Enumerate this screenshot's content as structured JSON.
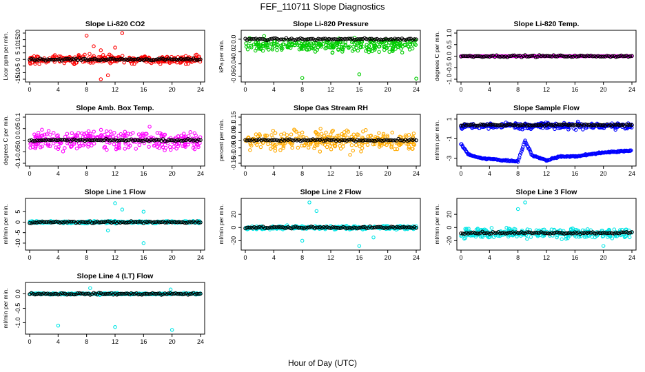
{
  "figure": {
    "title": "FEF_110711  Slope Diagnostics",
    "xlabel": "Hour of Day (UTC)"
  },
  "chart_data": [
    {
      "type": "scatter",
      "title": "Slope Li-820 CO2",
      "ylabel": "Licor ppm per min.",
      "xlim": [
        0,
        24
      ],
      "ylim": [
        -15,
        20
      ],
      "xticks": [
        0,
        4,
        8,
        12,
        16,
        20,
        24
      ],
      "yticks": [
        -15,
        -10,
        -5,
        0,
        5,
        10,
        15,
        20
      ],
      "series": [
        {
          "color": "#ff0000",
          "band": [
            -6,
            6
          ],
          "y_center": 0,
          "outliers": [
            [
              8,
              18
            ],
            [
              10,
              7
            ],
            [
              11,
              -12
            ],
            [
              12,
              9
            ],
            [
              13,
              20
            ],
            [
              10,
              -15
            ],
            [
              9,
              10
            ]
          ]
        },
        {
          "color": "#000000",
          "y_center": 0
        }
      ]
    },
    {
      "type": "scatter",
      "title": "Slope Li-820 Pressure",
      "ylabel": "kPa per min.",
      "xlim": [
        0,
        24
      ],
      "ylim": [
        -0.065,
        0.01
      ],
      "xticks": [
        0,
        4,
        8,
        12,
        16,
        20,
        24
      ],
      "yticks": [
        -0.06,
        -0.04,
        -0.02,
        0.0
      ],
      "series": [
        {
          "color": "#00cc00",
          "band": [
            -0.03,
            0.01
          ],
          "y_center": -0.005,
          "outliers": [
            [
              8,
              -0.063
            ],
            [
              16,
              -0.057
            ],
            [
              24,
              -0.064
            ]
          ]
        },
        {
          "color": "#000000",
          "y_center": 0.0
        }
      ]
    },
    {
      "type": "scatter",
      "title": "Slope Li-820 Temp.",
      "ylabel": "degrees C per min.",
      "xlim": [
        0,
        24
      ],
      "ylim": [
        -1,
        1
      ],
      "xticks": [
        0,
        4,
        8,
        12,
        16,
        20,
        24
      ],
      "yticks": [
        -1.0,
        -0.5,
        0.0,
        0.5,
        1.0
      ],
      "series": [
        {
          "color": "#ff00ff",
          "y_center": 0.0
        },
        {
          "color": "#000000",
          "y_center": 0.0
        }
      ]
    },
    {
      "type": "scatter",
      "title": "Slope Amb. Box Temp.",
      "ylabel": "degrees C per min.",
      "xlim": [
        0,
        24
      ],
      "ylim": [
        -0.1,
        0.1
      ],
      "xticks": [
        0,
        4,
        8,
        12,
        16,
        20,
        24
      ],
      "yticks": [
        -0.1,
        -0.05,
        0.0,
        0.05,
        0.1
      ],
      "series": [
        {
          "color": "#ff00ff",
          "band": [
            -0.08,
            0.08
          ],
          "y_center": 0.0
        },
        {
          "color": "#000000",
          "y_center": 0.0
        }
      ]
    },
    {
      "type": "scatter",
      "title": "Slope Gas Stream RH",
      "ylabel": "percent per min.",
      "xlim": [
        0,
        24
      ],
      "ylim": [
        -0.15,
        0.15
      ],
      "xticks": [
        0,
        4,
        8,
        12,
        16,
        20,
        24
      ],
      "yticks": [
        -0.15,
        -0.1,
        -0.05,
        0.0,
        0.05,
        0.1,
        0.15
      ],
      "series": [
        {
          "color": "#ffaa00",
          "band": [
            -0.12,
            0.12
          ],
          "y_center": 0.0
        },
        {
          "color": "#000000",
          "y_center": 0.0
        }
      ]
    },
    {
      "type": "scatter",
      "title": "Slope Sample Flow",
      "ylabel": "ml/min per min.",
      "xlim": [
        0,
        24
      ],
      "ylim": [
        -3.5,
        1.2
      ],
      "xticks": [
        0,
        4,
        8,
        12,
        16,
        20,
        24
      ],
      "yticks": [
        -3,
        -1,
        1
      ],
      "series": [
        {
          "color": "#0000ff",
          "band": [
            -0.3,
            0.9
          ],
          "y_center": 0.3
        },
        {
          "color": "#0000ff",
          "lower_track": [
            [
              0,
              -1.5
            ],
            [
              1,
              -2.6
            ],
            [
              3,
              -3.0
            ],
            [
              6,
              -3.2
            ],
            [
              8,
              -3.3
            ],
            [
              9,
              -1.2
            ],
            [
              10,
              -2.7
            ],
            [
              12,
              -3.2
            ],
            [
              14,
              -2.8
            ],
            [
              16,
              -2.8
            ],
            [
              20,
              -2.4
            ],
            [
              24,
              -2.2
            ]
          ]
        },
        {
          "color": "#000000",
          "y_center": 0.4
        }
      ]
    },
    {
      "type": "scatter",
      "title": "Slope Line 1 Flow",
      "ylabel": "ml/min per min.",
      "xlim": [
        0,
        24
      ],
      "ylim": [
        -12,
        10
      ],
      "xticks": [
        0,
        4,
        8,
        12,
        16,
        20,
        24
      ],
      "yticks": [
        -10,
        -5,
        0,
        5
      ],
      "series": [
        {
          "color": "#00e5e5",
          "band": [
            -1,
            1
          ],
          "y_center": 0.0,
          "outliers": [
            [
              12,
              9
            ],
            [
              16,
              -10
            ],
            [
              13,
              6
            ],
            [
              11,
              -4
            ],
            [
              16,
              5
            ]
          ]
        },
        {
          "color": "#000000",
          "y_center": 0.0
        }
      ]
    },
    {
      "type": "scatter",
      "title": "Slope Line 2 Flow",
      "ylabel": "ml/min per min.",
      "xlim": [
        0,
        24
      ],
      "ylim": [
        -30,
        40
      ],
      "xticks": [
        0,
        4,
        8,
        12,
        16,
        20,
        24
      ],
      "yticks": [
        -20,
        0,
        20
      ],
      "series": [
        {
          "color": "#00e5e5",
          "band": [
            -5,
            5
          ],
          "y_center": 0.0,
          "outliers": [
            [
              9,
              38
            ],
            [
              16,
              -28
            ],
            [
              8,
              -20
            ],
            [
              10,
              25
            ],
            [
              18,
              -15
            ]
          ]
        },
        {
          "color": "#000000",
          "y_center": 0.0
        }
      ]
    },
    {
      "type": "scatter",
      "title": "Slope Line 3 Flow",
      "ylabel": "ml/min per min.",
      "xlim": [
        0,
        24
      ],
      "ylim": [
        -30,
        40
      ],
      "xticks": [
        0,
        4,
        8,
        12,
        16,
        20,
        24
      ],
      "yticks": [
        -20,
        0,
        20
      ],
      "series": [
        {
          "color": "#00e5e5",
          "band": [
            -22,
            5
          ],
          "y_center": -10,
          "outliers": [
            [
              9,
              38
            ],
            [
              8,
              28
            ],
            [
              20,
              -28
            ]
          ]
        },
        {
          "color": "#000000",
          "y_center": -8
        }
      ]
    },
    {
      "type": "scatter",
      "title": "Slope Line 4 (LT) Flow",
      "ylabel": "ml/min per min.",
      "xlim": [
        0,
        24
      ],
      "ylim": [
        -1.3,
        0.3
      ],
      "xticks": [
        0,
        4,
        8,
        12,
        16,
        20,
        24
      ],
      "yticks": [
        -1.0,
        -0.5,
        0.0
      ],
      "series": [
        {
          "color": "#00e5e5",
          "band": [
            -0.05,
            0.05
          ],
          "y_center": 0.0,
          "outliers": [
            [
              4,
              -1.1
            ],
            [
              12,
              -1.15
            ],
            [
              20,
              -1.25
            ],
            [
              8.5,
              0.2
            ],
            [
              19.8,
              0.15
            ]
          ]
        },
        {
          "color": "#000000",
          "y_center": 0.0
        }
      ]
    }
  ]
}
